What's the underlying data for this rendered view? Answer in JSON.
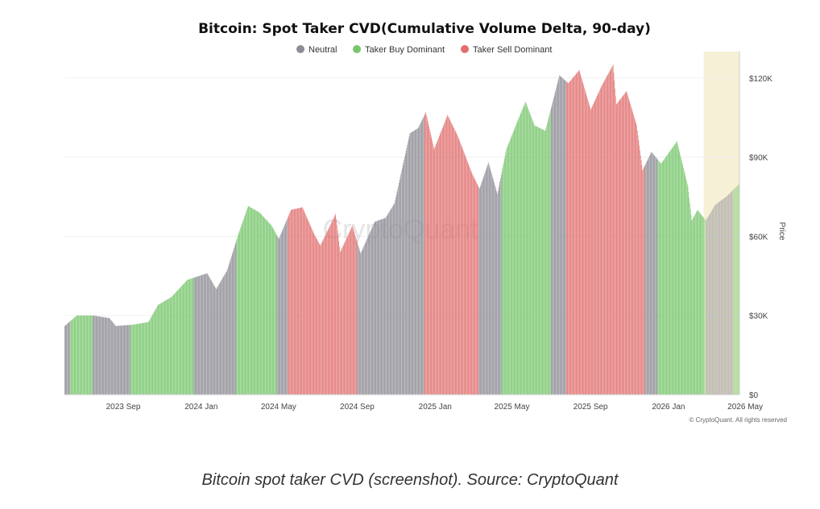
{
  "caption": "Bitcoin spot taker CVD (screenshot). Source: CryptoQuant",
  "copyright": "© CryptoQuant. All rights reserved",
  "watermark": "CryptoQuant",
  "chart_data": {
    "type": "bar",
    "title": "Bitcoin: Spot Taker CVD(Cumulative Volume Delta, 90-day)",
    "xlabel": "",
    "ylabel": "Price",
    "ylim": [
      0,
      130000
    ],
    "y_ticks": [
      {
        "value": 0,
        "label": "$0"
      },
      {
        "value": 30000,
        "label": "$30K"
      },
      {
        "value": 60000,
        "label": "$60K"
      },
      {
        "value": 90000,
        "label": "$90K"
      },
      {
        "value": 120000,
        "label": "$120K"
      }
    ],
    "x_range": [
      "2023-06-01",
      "2026-04-22"
    ],
    "x_ticks": [
      {
        "date": "2023-09-01",
        "label": "2023 Sep"
      },
      {
        "date": "2024-01-01",
        "label": "2024 Jan"
      },
      {
        "date": "2024-05-01",
        "label": "2024 May"
      },
      {
        "date": "2024-09-01",
        "label": "2024 Sep"
      },
      {
        "date": "2025-01-01",
        "label": "2025 Jan"
      },
      {
        "date": "2025-05-01",
        "label": "2025 May"
      },
      {
        "date": "2025-09-01",
        "label": "2025 Sep"
      },
      {
        "date": "2026-01-01",
        "label": "2026 Jan"
      },
      {
        "date": "2026-05-01",
        "label": "2026 May"
      }
    ],
    "grid": true,
    "legend_position": "top-center",
    "legend": [
      {
        "name": "Neutral",
        "color": "#8c8c94"
      },
      {
        "name": "Taker Buy Dominant",
        "color": "#77c66c"
      },
      {
        "name": "Taker Sell Dominant",
        "color": "#e16f6f"
      }
    ],
    "highlight_range": {
      "start": "2026-02-25",
      "end": "2026-04-22",
      "color": "#f6f0d6"
    },
    "price_points": [
      {
        "date": "2023-06-01",
        "value": 26000
      },
      {
        "date": "2023-06-20",
        "value": 30000
      },
      {
        "date": "2023-07-15",
        "value": 30000
      },
      {
        "date": "2023-08-10",
        "value": 29000
      },
      {
        "date": "2023-08-20",
        "value": 26000
      },
      {
        "date": "2023-09-15",
        "value": 26500
      },
      {
        "date": "2023-10-10",
        "value": 27500
      },
      {
        "date": "2023-10-25",
        "value": 34000
      },
      {
        "date": "2023-11-15",
        "value": 37000
      },
      {
        "date": "2023-12-10",
        "value": 43500
      },
      {
        "date": "2024-01-10",
        "value": 46000
      },
      {
        "date": "2024-01-24",
        "value": 40000
      },
      {
        "date": "2024-02-10",
        "value": 47000
      },
      {
        "date": "2024-02-28",
        "value": 61000
      },
      {
        "date": "2024-03-14",
        "value": 71500
      },
      {
        "date": "2024-04-01",
        "value": 69000
      },
      {
        "date": "2024-04-20",
        "value": 64000
      },
      {
        "date": "2024-05-01",
        "value": 59000
      },
      {
        "date": "2024-05-20",
        "value": 70000
      },
      {
        "date": "2024-06-07",
        "value": 71000
      },
      {
        "date": "2024-06-25",
        "value": 61000
      },
      {
        "date": "2024-07-05",
        "value": 56500
      },
      {
        "date": "2024-07-29",
        "value": 68500
      },
      {
        "date": "2024-08-05",
        "value": 54000
      },
      {
        "date": "2024-08-24",
        "value": 64000
      },
      {
        "date": "2024-09-06",
        "value": 53500
      },
      {
        "date": "2024-09-28",
        "value": 65500
      },
      {
        "date": "2024-10-15",
        "value": 67000
      },
      {
        "date": "2024-10-29",
        "value": 72500
      },
      {
        "date": "2024-11-12",
        "value": 88000
      },
      {
        "date": "2024-11-22",
        "value": 99000
      },
      {
        "date": "2024-12-05",
        "value": 101000
      },
      {
        "date": "2024-12-17",
        "value": 107000
      },
      {
        "date": "2024-12-30",
        "value": 93000
      },
      {
        "date": "2025-01-20",
        "value": 106000
      },
      {
        "date": "2025-02-05",
        "value": 98000
      },
      {
        "date": "2025-02-27",
        "value": 84000
      },
      {
        "date": "2025-03-11",
        "value": 78000
      },
      {
        "date": "2025-03-25",
        "value": 88000
      },
      {
        "date": "2025-04-08",
        "value": 76000
      },
      {
        "date": "2025-04-22",
        "value": 93000
      },
      {
        "date": "2025-05-10",
        "value": 104000
      },
      {
        "date": "2025-05-22",
        "value": 111000
      },
      {
        "date": "2025-06-05",
        "value": 102000
      },
      {
        "date": "2025-06-22",
        "value": 100000
      },
      {
        "date": "2025-07-14",
        "value": 121000
      },
      {
        "date": "2025-07-28",
        "value": 118000
      },
      {
        "date": "2025-08-14",
        "value": 123000
      },
      {
        "date": "2025-09-01",
        "value": 108000
      },
      {
        "date": "2025-09-18",
        "value": 117000
      },
      {
        "date": "2025-10-06",
        "value": 125000
      },
      {
        "date": "2025-10-11",
        "value": 110000
      },
      {
        "date": "2025-10-27",
        "value": 115000
      },
      {
        "date": "2025-11-12",
        "value": 102000
      },
      {
        "date": "2025-11-21",
        "value": 85000
      },
      {
        "date": "2025-12-05",
        "value": 92000
      },
      {
        "date": "2025-12-20",
        "value": 87500
      },
      {
        "date": "2026-01-05",
        "value": 93000
      },
      {
        "date": "2026-01-14",
        "value": 96000
      },
      {
        "date": "2026-01-31",
        "value": 79000
      },
      {
        "date": "2026-02-06",
        "value": 66000
      },
      {
        "date": "2026-02-15",
        "value": 70000
      },
      {
        "date": "2026-02-28",
        "value": 66000
      },
      {
        "date": "2026-03-15",
        "value": 72000
      },
      {
        "date": "2026-04-01",
        "value": 75000
      },
      {
        "date": "2026-04-22",
        "value": 80000
      }
    ],
    "regimes": [
      {
        "start": "2023-06-01",
        "end": "2023-06-10",
        "class": "Neutral"
      },
      {
        "start": "2023-06-10",
        "end": "2023-07-15",
        "class": "Taker Buy Dominant"
      },
      {
        "start": "2023-07-15",
        "end": "2023-09-12",
        "class": "Neutral"
      },
      {
        "start": "2023-09-12",
        "end": "2023-12-20",
        "class": "Taker Buy Dominant"
      },
      {
        "start": "2023-12-20",
        "end": "2024-02-25",
        "class": "Neutral"
      },
      {
        "start": "2024-02-25",
        "end": "2024-04-28",
        "class": "Taker Buy Dominant"
      },
      {
        "start": "2024-04-28",
        "end": "2024-05-15",
        "class": "Neutral"
      },
      {
        "start": "2024-05-15",
        "end": "2024-09-01",
        "class": "Taker Sell Dominant"
      },
      {
        "start": "2024-09-01",
        "end": "2024-12-15",
        "class": "Neutral"
      },
      {
        "start": "2024-12-15",
        "end": "2025-03-10",
        "class": "Taker Sell Dominant"
      },
      {
        "start": "2025-03-10",
        "end": "2025-04-15",
        "class": "Neutral"
      },
      {
        "start": "2025-04-15",
        "end": "2025-07-01",
        "class": "Taker Buy Dominant"
      },
      {
        "start": "2025-07-01",
        "end": "2025-07-25",
        "class": "Neutral"
      },
      {
        "start": "2025-07-25",
        "end": "2025-11-25",
        "class": "Taker Sell Dominant"
      },
      {
        "start": "2025-11-25",
        "end": "2025-12-15",
        "class": "Neutral"
      },
      {
        "start": "2025-12-15",
        "end": "2026-03-01",
        "class": "Taker Buy Dominant"
      },
      {
        "start": "2026-03-01",
        "end": "2026-04-12",
        "class": "Neutral"
      },
      {
        "start": "2026-04-12",
        "end": "2026-04-22",
        "class": "Taker Buy Dominant"
      }
    ]
  }
}
